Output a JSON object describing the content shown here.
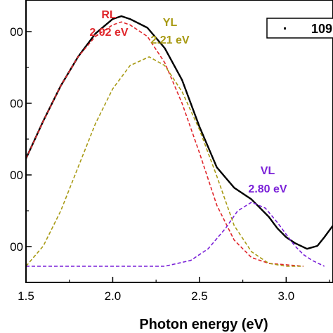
{
  "chart_data": {
    "type": "line",
    "xlabel": "Photon energy (eV)",
    "ylabel": "",
    "xlim": [
      1.5,
      3.27
    ],
    "ylim": [
      0,
      1
    ],
    "x_ticks": [
      "1.5",
      "2.0",
      "2.5",
      "3.0"
    ],
    "y_ticks": [
      "00",
      "00",
      "00",
      "00"
    ],
    "legend": {
      "label": "109",
      "position": "top-right"
    },
    "colors": {
      "measured": "#000000",
      "RL": "#e0262b",
      "YL": "#a89a14",
      "VL": "#7a20d8"
    },
    "series": [
      {
        "key": "measured",
        "style": "solid",
        "points": [
          [
            1.5,
            0.37
          ],
          [
            1.6,
            0.5
          ],
          [
            1.7,
            0.62
          ],
          [
            1.8,
            0.72
          ],
          [
            1.9,
            0.8
          ],
          [
            2.0,
            0.85
          ],
          [
            2.05,
            0.86
          ],
          [
            2.1,
            0.85
          ],
          [
            2.2,
            0.82
          ],
          [
            2.3,
            0.75
          ],
          [
            2.4,
            0.64
          ],
          [
            2.5,
            0.48
          ],
          [
            2.6,
            0.34
          ],
          [
            2.7,
            0.27
          ],
          [
            2.8,
            0.23
          ],
          [
            2.85,
            0.2
          ],
          [
            2.9,
            0.17
          ],
          [
            2.95,
            0.13
          ],
          [
            3.0,
            0.1
          ],
          [
            3.05,
            0.08
          ],
          [
            3.12,
            0.06
          ],
          [
            3.18,
            0.07
          ],
          [
            3.22,
            0.1
          ],
          [
            3.27,
            0.14
          ]
        ]
      },
      {
        "key": "RL",
        "style": "dashed",
        "points": [
          [
            1.5,
            0.37
          ],
          [
            1.6,
            0.5
          ],
          [
            1.7,
            0.62
          ],
          [
            1.8,
            0.72
          ],
          [
            1.9,
            0.79
          ],
          [
            2.0,
            0.83
          ],
          [
            2.05,
            0.84
          ],
          [
            2.1,
            0.83
          ],
          [
            2.2,
            0.79
          ],
          [
            2.3,
            0.7
          ],
          [
            2.4,
            0.56
          ],
          [
            2.5,
            0.39
          ],
          [
            2.6,
            0.21
          ],
          [
            2.7,
            0.09
          ],
          [
            2.8,
            0.03
          ],
          [
            2.9,
            0.01
          ],
          [
            3.0,
            0.005
          ],
          [
            3.1,
            0.0
          ]
        ]
      },
      {
        "key": "YL",
        "style": "dashed",
        "points": [
          [
            1.5,
            0.0
          ],
          [
            1.6,
            0.07
          ],
          [
            1.7,
            0.19
          ],
          [
            1.8,
            0.34
          ],
          [
            1.9,
            0.49
          ],
          [
            2.0,
            0.61
          ],
          [
            2.1,
            0.69
          ],
          [
            2.21,
            0.72
          ],
          [
            2.3,
            0.69
          ],
          [
            2.4,
            0.6
          ],
          [
            2.5,
            0.47
          ],
          [
            2.6,
            0.31
          ],
          [
            2.7,
            0.14
          ],
          [
            2.8,
            0.05
          ],
          [
            2.9,
            0.01
          ],
          [
            3.0,
            0.0
          ],
          [
            3.1,
            0.0
          ]
        ]
      },
      {
        "key": "VL",
        "style": "dashed",
        "points": [
          [
            1.5,
            0.0
          ],
          [
            2.0,
            0.0
          ],
          [
            2.3,
            0.0
          ],
          [
            2.45,
            0.02
          ],
          [
            2.55,
            0.06
          ],
          [
            2.65,
            0.13
          ],
          [
            2.72,
            0.19
          ],
          [
            2.8,
            0.22
          ],
          [
            2.88,
            0.2
          ],
          [
            2.95,
            0.15
          ],
          [
            3.0,
            0.11
          ],
          [
            3.05,
            0.07
          ],
          [
            3.1,
            0.04
          ],
          [
            3.15,
            0.02
          ],
          [
            3.22,
            0.0
          ]
        ]
      }
    ],
    "annotations": [
      {
        "key": "RL",
        "name": "RL",
        "value": "2.02 eV"
      },
      {
        "key": "YL",
        "name": "YL",
        "value": "2.21 eV"
      },
      {
        "key": "VL",
        "name": "VL",
        "value": "2.80 eV"
      }
    ]
  }
}
